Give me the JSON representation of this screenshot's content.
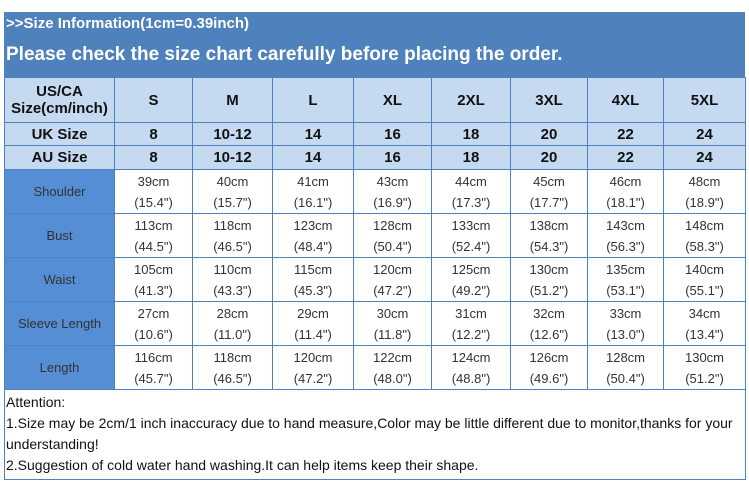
{
  "header": {
    "info": ">>Size Information(1cm=0.39inch)",
    "notice": "Please check the size chart carefully before placing the order."
  },
  "table": {
    "size_header": "US/CA Size(cm/inch)",
    "sizes": [
      "S",
      "M",
      "L",
      "XL",
      "2XL",
      "3XL",
      "4XL",
      "5XL"
    ],
    "uk_label": "UK Size",
    "uk": [
      "8",
      "10-12",
      "14",
      "16",
      "18",
      "20",
      "22",
      "24"
    ],
    "au_label": "AU Size",
    "au": [
      "8",
      "10-12",
      "14",
      "16",
      "18",
      "20",
      "22",
      "24"
    ],
    "rows": [
      {
        "label": "Shoulder",
        "cm": [
          "39cm",
          "40cm",
          "41cm",
          "43cm",
          "44cm",
          "45cm",
          "46cm",
          "48cm"
        ],
        "inch": [
          "(15.4\")",
          "(15.7\")",
          "(16.1\")",
          "(16.9\")",
          "(17.3\")",
          "(17.7\")",
          "(18.1\")",
          "(18.9\")"
        ]
      },
      {
        "label": "Bust",
        "cm": [
          "113cm",
          "118cm",
          "123cm",
          "128cm",
          "133cm",
          "138cm",
          "143cm",
          "148cm"
        ],
        "inch": [
          "(44.5\")",
          "(46.5\")",
          "(48.4\")",
          "(50.4\")",
          "(52.4\")",
          "(54.3\")",
          "(56.3\")",
          "(58.3\")"
        ]
      },
      {
        "label": "Waist",
        "cm": [
          "105cm",
          "110cm",
          "115cm",
          "120cm",
          "125cm",
          "130cm",
          "135cm",
          "140cm"
        ],
        "inch": [
          "(41.3\")",
          "(43.3\")",
          "(45.3\")",
          "(47.2\")",
          "(49.2\")",
          "(51.2\")",
          "(53.1\")",
          "(55.1\")"
        ]
      },
      {
        "label": "Sleeve Length",
        "cm": [
          "27cm",
          "28cm",
          "29cm",
          "30cm",
          "31cm",
          "32cm",
          "33cm",
          "34cm"
        ],
        "inch": [
          "(10.6\")",
          "(11.0\")",
          "(11.4\")",
          "(11.8\")",
          "(12.2\")",
          "(12.6\")",
          "(13.0\")",
          "(13.4\")"
        ]
      },
      {
        "label": "Length",
        "cm": [
          "116cm",
          "118cm",
          "120cm",
          "122cm",
          "124cm",
          "126cm",
          "128cm",
          "130cm"
        ],
        "inch": [
          "(45.7\")",
          "(46.5\")",
          "(47.2\")",
          "(48.0\")",
          "(48.8\")",
          "(49.6\")",
          "(50.4\")",
          "(51.2\")"
        ]
      }
    ]
  },
  "attention": {
    "title": "Attention:",
    "lines": [
      "1.Size may be 2cm/1 inch inaccuracy due to hand measure,Color may be little different due to monitor,thanks for your understanding!",
      "2.Suggestion of cold water hand washing.It can help items keep their shape."
    ]
  },
  "colors": {
    "header_blue": "#4f81bd",
    "light_blue": "#c5d9f1",
    "label_blue": "#558ed5"
  }
}
